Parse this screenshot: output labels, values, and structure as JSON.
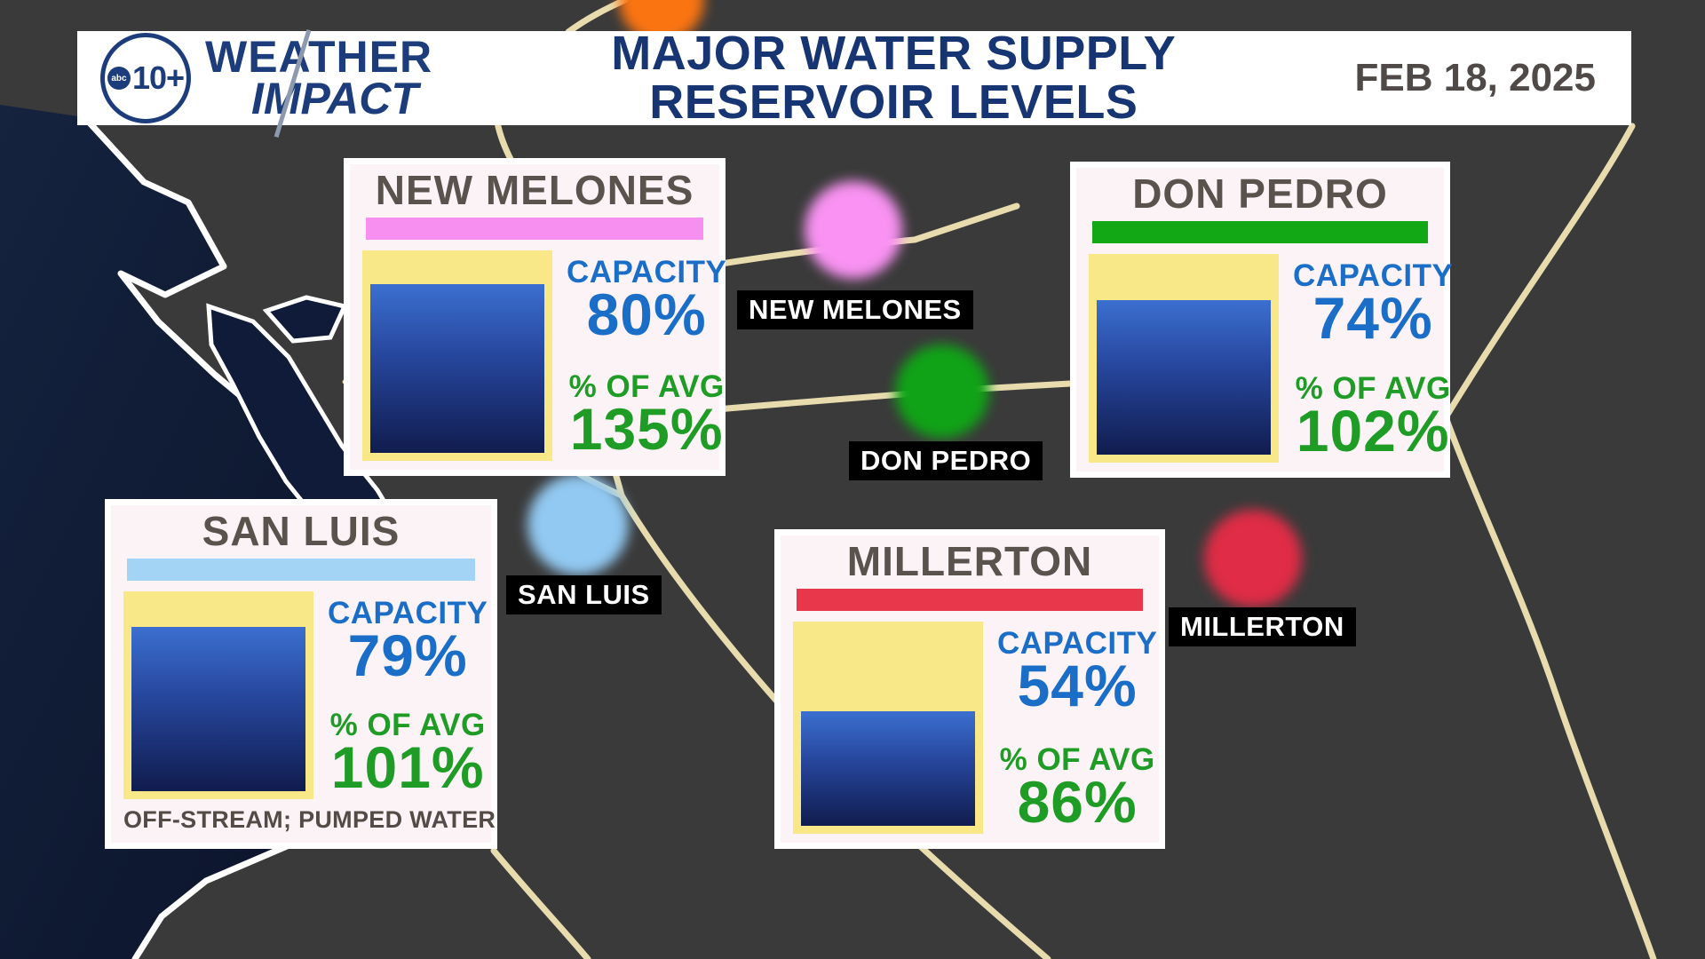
{
  "header": {
    "logo": {
      "abc": "abc",
      "station": "10+",
      "brand_line1": "WEATHER",
      "brand_line2": "IMPACT"
    },
    "title_line1": "MAJOR WATER SUPPLY",
    "title_line2": "RESERVOIR LEVELS",
    "date": "FEB 18, 2025"
  },
  "cards": [
    {
      "name": "NEW MELONES",
      "accent_color": "#f78ff0",
      "capacity_label": "CAPACITY",
      "capacity_value": "80%",
      "capacity_pct": 80,
      "avg_label": "% OF AVG",
      "avg_value": "135%"
    },
    {
      "name": "DON PEDRO",
      "accent_color": "#12a714",
      "capacity_label": "CAPACITY",
      "capacity_value": "74%",
      "capacity_pct": 74,
      "avg_label": "% OF AVG",
      "avg_value": "102%"
    },
    {
      "name": "SAN LUIS",
      "accent_color": "#a3d3f5",
      "capacity_label": "CAPACITY",
      "capacity_value": "79%",
      "capacity_pct": 79,
      "avg_label": "% OF AVG",
      "avg_value": "101%",
      "note": "OFF-STREAM; PUMPED WATER"
    },
    {
      "name": "MILLERTON",
      "accent_color": "#e8374a",
      "capacity_label": "CAPACITY",
      "capacity_value": "54%",
      "capacity_pct": 54,
      "avg_label": "% OF AVG",
      "avg_value": "86%"
    }
  ],
  "map_markers": [
    {
      "label": "NEW MELONES",
      "dot_color": "#f992f2"
    },
    {
      "label": "DON PEDRO",
      "dot_color": "#10a317"
    },
    {
      "label": "SAN LUIS",
      "dot_color": "#92c9f2"
    },
    {
      "label": "MILLERTON",
      "dot_color": "#e02c46"
    },
    {
      "label": "",
      "dot_color": "#fb7412"
    }
  ],
  "colors": {
    "land": "#3a3a3a",
    "ocean": "#101c38",
    "coastline": "#ffffff",
    "roads": "#e8dcae",
    "navy_text": "#173572",
    "card_bg": "#fcf3f7",
    "gauge_yellow": "#f9e887",
    "gauge_blue_top": "#3b6fd0",
    "gauge_blue_bottom": "#101c4e",
    "capacity_blue": "#1b6ec8",
    "avg_green": "#1f9c26",
    "card_title_gray": "#5a524d",
    "date_gray": "#4f4a47",
    "label_bg": "#000000"
  },
  "chart_data": {
    "type": "bar",
    "title": "MAJOR WATER SUPPLY RESERVOIR LEVELS",
    "date": "FEB 18, 2025",
    "categories": [
      "NEW MELONES",
      "DON PEDRO",
      "SAN LUIS",
      "MILLERTON"
    ],
    "series": [
      {
        "name": "Capacity (% full)",
        "values": [
          80,
          74,
          79,
          54
        ]
      },
      {
        "name": "% of Average",
        "values": [
          135,
          102,
          101,
          86
        ]
      }
    ],
    "ylim": [
      0,
      100
    ],
    "notes": {
      "SAN LUIS": "OFF-STREAM; PUMPED WATER"
    }
  }
}
